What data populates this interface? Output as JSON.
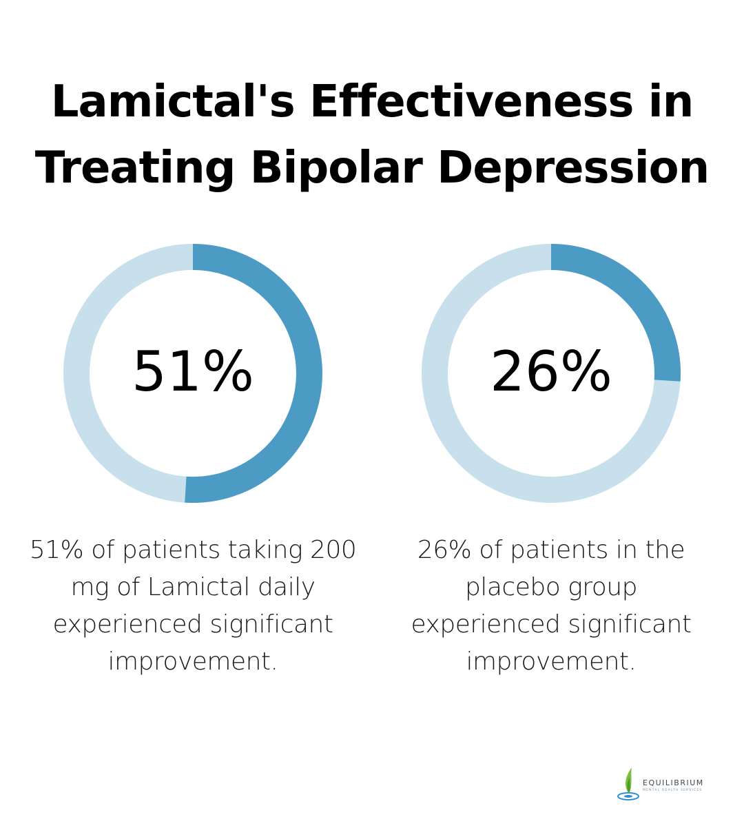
{
  "title": {
    "line1": "Lamictal's Effectiveness in",
    "line2": "Treating Bipolar Depression"
  },
  "colors": {
    "track": "#c8e0ec",
    "fill": "#4b9bc4",
    "text": "#000000"
  },
  "chart_data": [
    {
      "type": "pie",
      "variant": "donut",
      "value": 51,
      "max": 100,
      "label": "51%",
      "description": "51% of patients taking 200 mg of Lamictal daily experienced significant improvement.",
      "description_lines": [
        "51% of patients taking 200",
        "mg of Lamictal daily",
        "experienced significant",
        "improvement."
      ]
    },
    {
      "type": "pie",
      "variant": "donut",
      "value": 26,
      "max": 100,
      "label": "26%",
      "description": "26% of patients in the placebo group experienced significant improvement.",
      "description_lines": [
        "26% of patients in the",
        "placebo group",
        "experienced significant",
        "improvement."
      ]
    }
  ],
  "logo": {
    "name": "EQUILIBRIUM",
    "tagline": "MENTAL HEALTH SERVICES",
    "icon": "leaf-drop-icon"
  }
}
